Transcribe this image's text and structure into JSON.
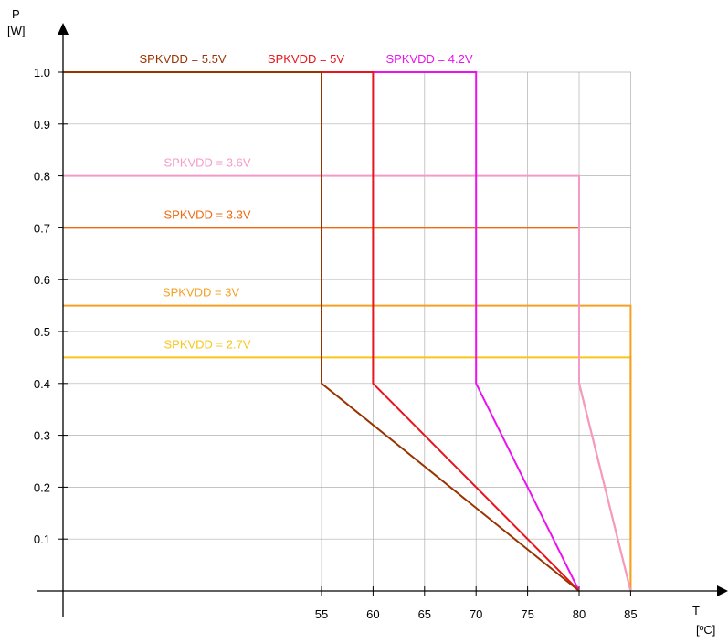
{
  "chart_data": {
    "type": "line",
    "y_axis": {
      "label": "P",
      "unit": "[W]",
      "ylim": [
        0,
        1.0
      ],
      "ticks": [
        0.1,
        0.2,
        0.3,
        0.4,
        0.5,
        0.6,
        0.7,
        0.8,
        0.9,
        1.0
      ]
    },
    "x_axis": {
      "label": "T",
      "unit": "[ºC]",
      "ticks": [
        55,
        60,
        65,
        70,
        75,
        80,
        85
      ]
    },
    "grid": true,
    "series": [
      {
        "name": "SPKVDD = 5.5V",
        "color": "#993300",
        "points": [
          [
            0,
            1.0
          ],
          [
            55,
            1.0
          ],
          [
            55,
            0.4
          ],
          [
            80,
            0
          ]
        ]
      },
      {
        "name": "SPKVDD = 5V",
        "color": "#e8141c",
        "points": [
          [
            0,
            1.0
          ],
          [
            60,
            1.0
          ],
          [
            60,
            0.4
          ],
          [
            80,
            0
          ]
        ]
      },
      {
        "name": "SPKVDD = 4.2V",
        "color": "#ec12f0",
        "points": [
          [
            0,
            1.0
          ],
          [
            70,
            1.0
          ],
          [
            70,
            0.4
          ],
          [
            80,
            0
          ]
        ]
      },
      {
        "name": "SPKVDD = 3.6V",
        "color": "#f59ac8",
        "points": [
          [
            0,
            0.8
          ],
          [
            80,
            0.8
          ],
          [
            80,
            0.4
          ],
          [
            85,
            0
          ]
        ]
      },
      {
        "name": "SPKVDD = 3.3V",
        "color": "#ee6b10",
        "points": [
          [
            0,
            0.7
          ],
          [
            80,
            0.7
          ],
          [
            80,
            0.4
          ],
          [
            85,
            0
          ]
        ]
      },
      {
        "name": "SPKVDD = 3V",
        "color": "#f5a023",
        "points": [
          [
            0,
            0.55
          ],
          [
            85,
            0.55
          ],
          [
            85,
            0
          ]
        ]
      },
      {
        "name": "SPKVDD = 2.7V",
        "color": "#f9c617",
        "points": [
          [
            0,
            0.45
          ],
          [
            85,
            0.45
          ],
          [
            85,
            0
          ]
        ]
      }
    ]
  }
}
